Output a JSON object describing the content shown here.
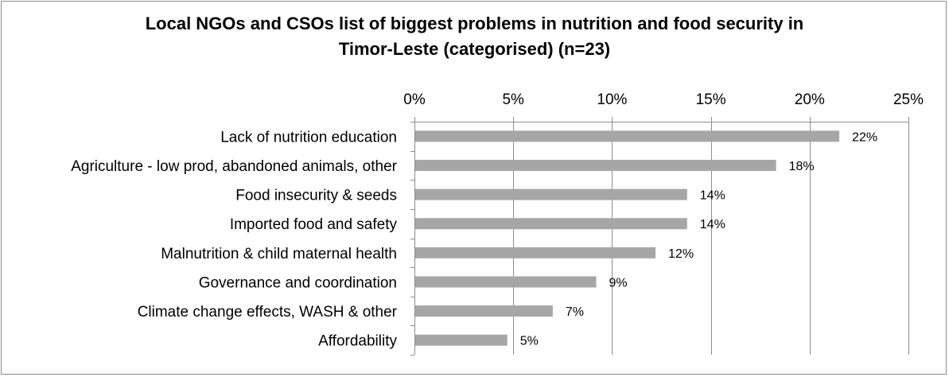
{
  "chart_data": {
    "type": "bar",
    "orientation": "horizontal",
    "title_line1": "Local NGOs and CSOs list of biggest problems in nutrition and food security in",
    "title_line2": "Timor-Leste (categorised) (n=23)",
    "categories": [
      "Lack of nutrition education",
      "Agriculture - low prod, abandoned animals, other",
      "Food insecurity & seeds",
      "Imported food and safety",
      "Malnutrition & child maternal health",
      "Governance and coordination",
      "Climate change effects, WASH & other",
      "Affordability"
    ],
    "values": [
      21.5,
      18.3,
      13.8,
      13.8,
      12.2,
      9.2,
      7.0,
      4.7
    ],
    "data_labels": [
      "22%",
      "18%",
      "14%",
      "14%",
      "12%",
      "9%",
      "7%",
      "5%"
    ],
    "xlim": [
      0,
      25
    ],
    "x_ticks": [
      0,
      5,
      10,
      15,
      20,
      25
    ],
    "x_tick_labels": [
      "0%",
      "5%",
      "10%",
      "15%",
      "20%",
      "25%"
    ],
    "x_axis_position": "top",
    "grid": true,
    "legend": "none",
    "bar_color": "#a6a6a6",
    "grid_color": "#8c8c8c"
  }
}
